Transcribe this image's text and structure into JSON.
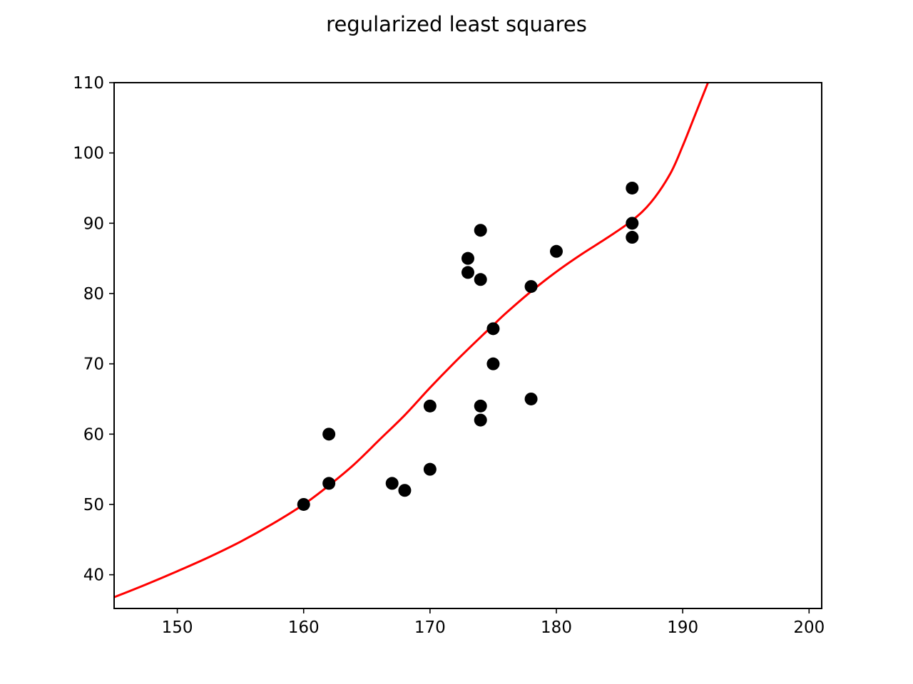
{
  "chart_data": {
    "type": "scatter",
    "title": "regularized least squares",
    "xlabel": "",
    "ylabel": "",
    "xlim": [
      145,
      201
    ],
    "ylim": [
      35.2,
      110
    ],
    "xticks": [
      150,
      160,
      170,
      180,
      190,
      200
    ],
    "yticks": [
      40,
      50,
      60,
      70,
      80,
      90,
      100,
      110
    ],
    "grid": false,
    "colors": {
      "points": "#000000",
      "fit_line": "#ff0000",
      "axes": "#000000",
      "background": "#ffffff"
    },
    "series": [
      {
        "kind": "points",
        "x": [
          160,
          162,
          162,
          167,
          168,
          170,
          170,
          173,
          173,
          174,
          174,
          174,
          174,
          175,
          175,
          178,
          178,
          180,
          186,
          186,
          186
        ],
        "y": [
          50,
          53,
          60,
          53,
          52,
          55,
          64,
          83,
          85,
          62,
          64,
          82,
          89,
          70,
          75,
          65,
          81,
          86,
          88,
          90,
          95
        ]
      },
      {
        "kind": "fit_line",
        "x": [
          145,
          147.5,
          150,
          152.5,
          155,
          157.5,
          160,
          162,
          164,
          166,
          168,
          170,
          172,
          174,
          175,
          176,
          178,
          180,
          182,
          184,
          186,
          187.5,
          189,
          190,
          191,
          192
        ],
        "y": [
          36.8,
          38.6,
          40.5,
          42.5,
          44.7,
          47.2,
          50.0,
          52.7,
          55.7,
          59.2,
          62.7,
          66.6,
          70.3,
          73.8,
          75.5,
          77.2,
          80.3,
          83.1,
          85.6,
          87.9,
          90.4,
          93.0,
          97.0,
          101.0,
          105.5,
          110.0
        ]
      }
    ]
  }
}
